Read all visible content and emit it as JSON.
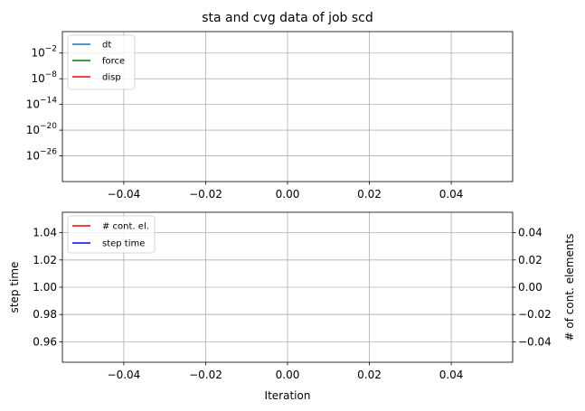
{
  "chart_data": [
    {
      "type": "line",
      "title": "sta and cvg data of job scd",
      "xlabel": "",
      "ylabel": "",
      "yscale": "log",
      "grid": true,
      "legend_position": "upper-left",
      "xlim": [
        -0.055,
        0.055
      ],
      "ylim_exp": [
        -32,
        3
      ],
      "x_ticks": [
        -0.04,
        -0.02,
        0.0,
        0.02,
        0.04
      ],
      "x_tick_labels": [
        "−0.04",
        "−0.02",
        "0.00",
        "0.02",
        "0.04"
      ],
      "y_tick_exponents": [
        -2,
        -8,
        -14,
        -20,
        -26
      ],
      "y_tick_labels": [
        "−2",
        "−8",
        "−14",
        "−20",
        "−26"
      ],
      "y_tick_base": "10",
      "series": [
        {
          "name": "dt",
          "color": "#1f77b4",
          "x": [],
          "y": []
        },
        {
          "name": "force",
          "color": "#008000",
          "x": [],
          "y": []
        },
        {
          "name": "disp",
          "color": "#ff0000",
          "x": [],
          "y": []
        }
      ]
    },
    {
      "type": "line",
      "title": "",
      "xlabel": "Iteration",
      "ylabel": "step time",
      "ylabel_right": "# of cont. elements",
      "grid": true,
      "legend_position": "upper-left",
      "xlim": [
        -0.055,
        0.055
      ],
      "ylim": [
        0.945,
        1.055
      ],
      "ylim_right": [
        -0.055,
        0.055
      ],
      "x_ticks": [
        -0.04,
        -0.02,
        0.0,
        0.02,
        0.04
      ],
      "x_tick_labels": [
        "−0.04",
        "−0.02",
        "0.00",
        "0.02",
        "0.04"
      ],
      "y_ticks": [
        0.96,
        0.98,
        1.0,
        1.02,
        1.04
      ],
      "y_tick_labels": [
        "0.96",
        "0.98",
        "1.00",
        "1.02",
        "1.04"
      ],
      "y_ticks_right": [
        -0.04,
        -0.02,
        0.0,
        0.02,
        0.04
      ],
      "y_tick_labels_right": [
        "−0.04",
        "−0.02",
        "0.00",
        "0.02",
        "0.04"
      ],
      "series": [
        {
          "name": "# cont. el.",
          "color": "#ff0000",
          "x": [],
          "y": []
        },
        {
          "name": "step time",
          "color": "#0000ff",
          "x": [],
          "y": []
        }
      ]
    }
  ]
}
